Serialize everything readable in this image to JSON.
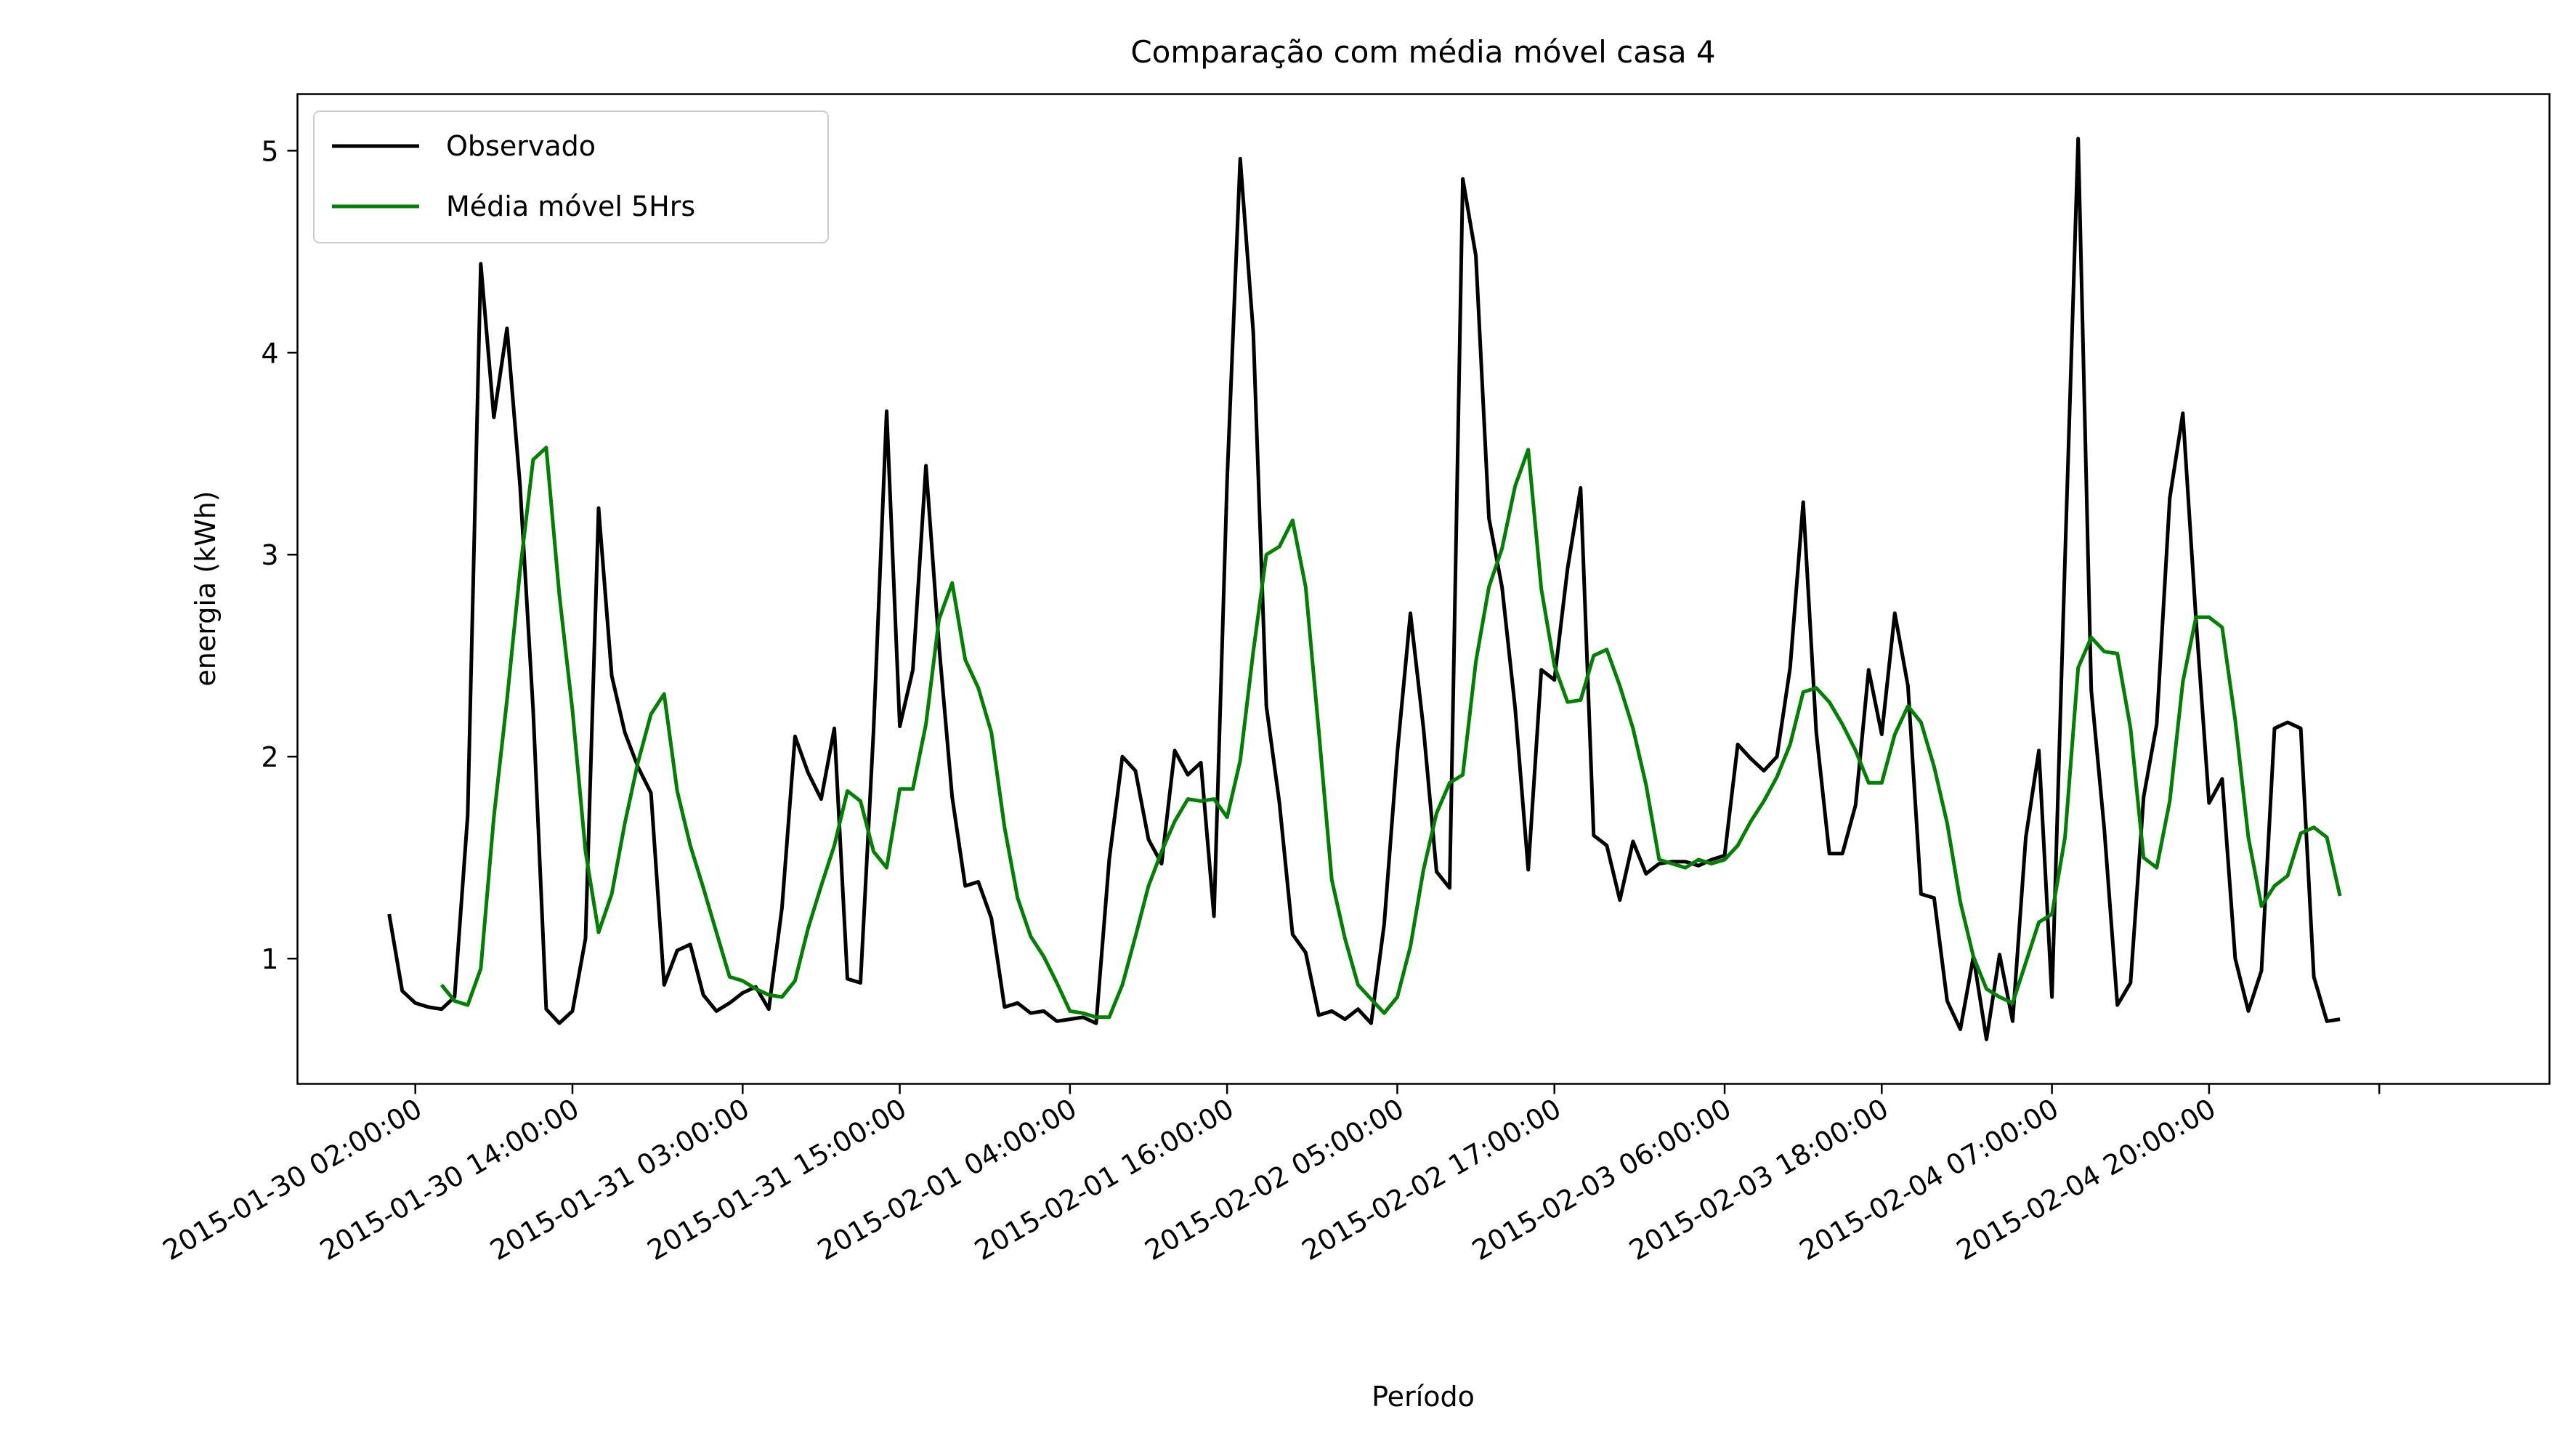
{
  "chart_data": {
    "type": "line",
    "title": "Comparação com média móvel casa 4",
    "xlabel": "Período",
    "ylabel": "energia (kWh)",
    "ylim": [
      0.38,
      5.28
    ],
    "xlim": [
      -9,
      163
    ],
    "grid": false,
    "legend": "top-left",
    "y_ticks": [
      1,
      2,
      3,
      4,
      5
    ],
    "x_ticks": [
      {
        "x": 0,
        "label": "2015-01-30 02:00:00"
      },
      {
        "x": 12,
        "label": "2015-01-30 14:00:00"
      },
      {
        "x": 25,
        "label": "2015-01-31 03:00:00"
      },
      {
        "x": 37,
        "label": "2015-01-31 15:00:00"
      },
      {
        "x": 50,
        "label": "2015-02-01 04:00:00"
      },
      {
        "x": 62,
        "label": "2015-02-01 16:00:00"
      },
      {
        "x": 75,
        "label": "2015-02-02 05:00:00"
      },
      {
        "x": 87,
        "label": "2015-02-02 17:00:00"
      },
      {
        "x": 100,
        "label": "2015-02-03 06:00:00"
      },
      {
        "x": 112,
        "label": "2015-02-03 18:00:00"
      },
      {
        "x": 125,
        "label": "2015-02-04 07:00:00"
      },
      {
        "x": 137,
        "label": "2015-02-04 20:00:00"
      },
      {
        "x": 150,
        "label": ""
      }
    ],
    "series": [
      {
        "name": "Observado",
        "color": "#000000",
        "x_start": -2,
        "values": [
          1.22,
          0.84,
          0.78,
          0.76,
          0.75,
          0.81,
          1.71,
          4.44,
          3.68,
          4.12,
          3.34,
          2.23,
          0.75,
          0.68,
          0.74,
          1.1,
          3.23,
          2.4,
          2.12,
          1.95,
          1.82,
          0.87,
          1.04,
          1.07,
          0.82,
          0.74,
          0.78,
          0.83,
          0.86,
          0.75,
          1.25,
          2.1,
          1.92,
          1.79,
          2.14,
          0.9,
          0.88,
          2.13,
          3.71,
          2.15,
          2.43,
          3.44,
          2.55,
          1.8,
          1.36,
          1.38,
          1.2,
          0.76,
          0.78,
          0.73,
          0.74,
          0.69,
          0.7,
          0.71,
          0.68,
          1.49,
          2.0,
          1.93,
          1.59,
          1.47,
          2.03,
          1.91,
          1.97,
          1.21,
          3.37,
          4.96,
          4.1,
          2.25,
          1.77,
          1.12,
          1.03,
          0.72,
          0.74,
          0.7,
          0.75,
          0.68,
          1.17,
          2.02,
          2.71,
          2.14,
          1.43,
          1.35,
          4.86,
          4.48,
          3.18,
          2.84,
          2.24,
          1.44,
          2.43,
          2.38,
          2.93,
          3.33,
          1.61,
          1.56,
          1.29,
          1.58,
          1.42,
          1.47,
          1.48,
          1.48,
          1.46,
          1.49,
          1.51,
          2.06,
          1.99,
          1.93,
          2.0,
          2.44,
          3.26,
          2.12,
          1.52,
          1.52,
          1.76,
          2.43,
          2.11,
          2.71,
          2.35,
          1.32,
          1.3,
          0.79,
          0.65,
          1.01,
          0.6,
          1.02,
          0.69,
          1.6,
          2.03,
          0.81,
          2.98,
          5.06,
          2.33,
          1.64,
          0.77,
          0.88,
          1.8,
          2.16,
          3.28,
          3.7,
          2.68,
          1.77,
          1.89,
          1.0,
          0.74,
          0.94,
          2.14,
          2.17,
          2.14,
          0.91,
          0.69,
          0.7
        ]
      },
      {
        "name": "Média móvel 5Hrs",
        "color": "#008000",
        "x_start": 2,
        "values": [
          0.87,
          0.79,
          0.77,
          0.95,
          1.7,
          2.28,
          2.92,
          3.47,
          3.53,
          2.8,
          2.23,
          1.53,
          1.13,
          1.32,
          1.67,
          1.97,
          2.21,
          2.31,
          1.83,
          1.56,
          1.35,
          1.13,
          0.91,
          0.89,
          0.85,
          0.82,
          0.81,
          0.89,
          1.15,
          1.36,
          1.56,
          1.83,
          1.78,
          1.53,
          1.45,
          1.84,
          1.84,
          2.16,
          2.68,
          2.86,
          2.48,
          2.34,
          2.12,
          1.65,
          1.3,
          1.11,
          1.01,
          0.88,
          0.74,
          0.73,
          0.71,
          0.71,
          0.87,
          1.11,
          1.36,
          1.53,
          1.68,
          1.79,
          1.78,
          1.79,
          1.7,
          1.98,
          2.52,
          3.0,
          3.04,
          3.17,
          2.84,
          2.13,
          1.39,
          1.1,
          0.87,
          0.8,
          0.73,
          0.81,
          1.06,
          1.44,
          1.72,
          1.87,
          1.91,
          2.47,
          2.84,
          3.03,
          3.34,
          3.52,
          2.83,
          2.45,
          2.27,
          2.28,
          2.5,
          2.53,
          2.35,
          2.14,
          1.86,
          1.49,
          1.47,
          1.45,
          1.49,
          1.47,
          1.49,
          1.56,
          1.68,
          1.78,
          1.9,
          2.06,
          2.32,
          2.34,
          2.27,
          2.16,
          2.03,
          1.87,
          1.87,
          2.11,
          2.25,
          2.17,
          1.95,
          1.67,
          1.28,
          1.01,
          0.85,
          0.81,
          0.78,
          0.98,
          1.18,
          1.22,
          1.6,
          2.44,
          2.59,
          2.52,
          2.51,
          2.14,
          1.5,
          1.45,
          1.78,
          2.37,
          2.69,
          2.69,
          2.64,
          2.18,
          1.6,
          1.26,
          1.36,
          1.41,
          1.62,
          1.65,
          1.6,
          1.31
        ]
      }
    ]
  }
}
